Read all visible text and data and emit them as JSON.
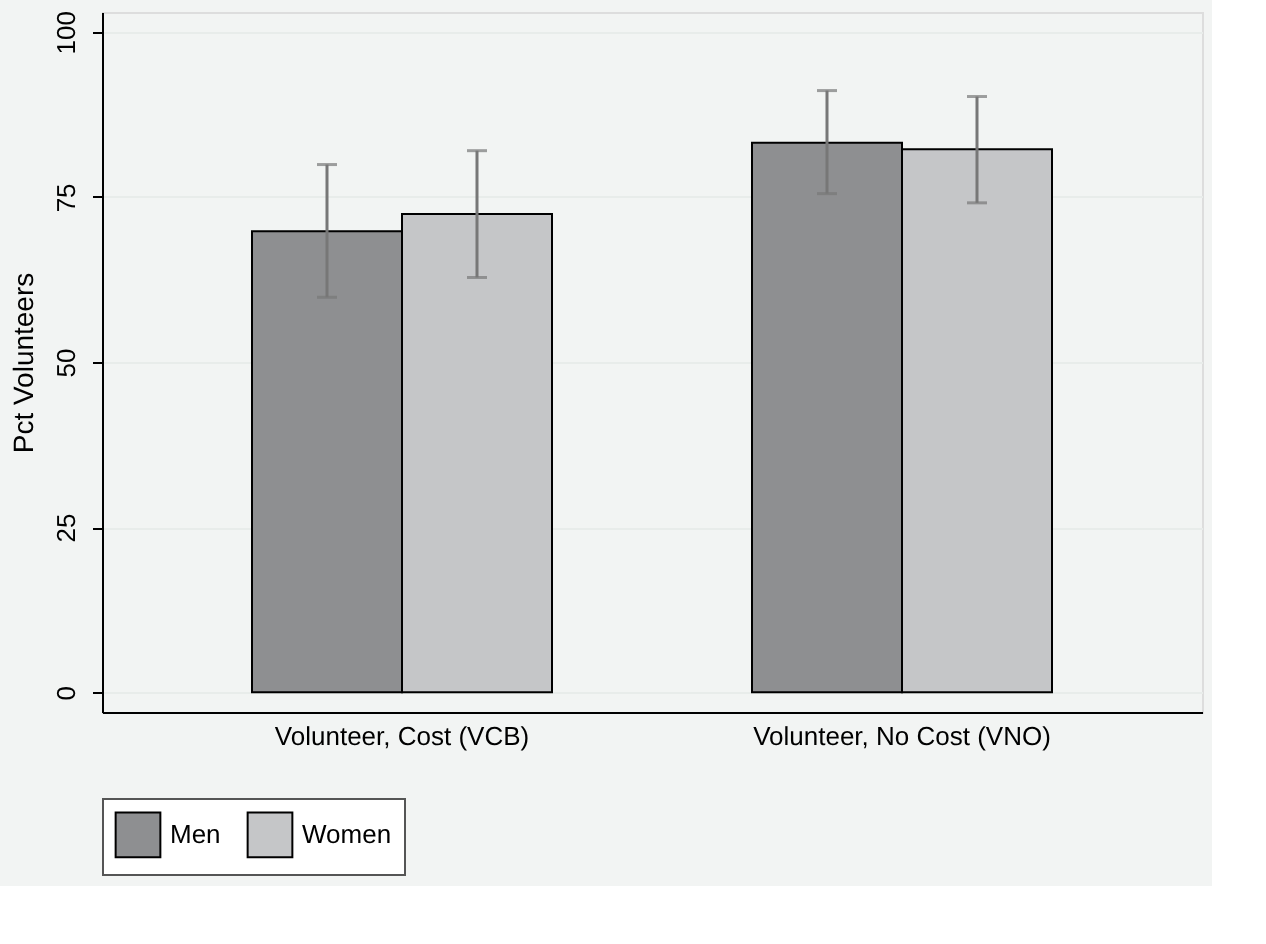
{
  "chart_data": {
    "type": "bar",
    "ylabel": "Pct Volunteers",
    "categories": [
      "Volunteer, Cost (VCB)",
      "Volunteer, No Cost (VNO)"
    ],
    "series": [
      {
        "name": "Men",
        "color": "#8e8f91",
        "values": [
          69.8,
          83.2
        ],
        "errors": [
          [
            59.8,
            79.9
          ],
          [
            75.5,
            91.1
          ]
        ]
      },
      {
        "name": "Women",
        "color": "#c5c6c8",
        "values": [
          72.4,
          82.2
        ],
        "errors": [
          [
            62.8,
            82.0
          ],
          [
            74.1,
            90.2
          ]
        ]
      }
    ],
    "ylim": [
      -3,
      103
    ],
    "yticks": [
      0,
      25,
      50,
      75,
      100
    ],
    "grid": "y",
    "legend": "bottom"
  }
}
